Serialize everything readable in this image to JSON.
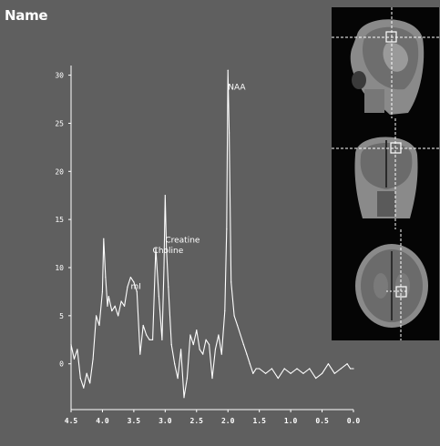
{
  "window": {
    "title": "Name"
  },
  "chart_data": {
    "type": "line",
    "x": [
      4.5,
      4.45,
      4.4,
      4.35,
      4.3,
      4.25,
      4.2,
      4.15,
      4.1,
      4.05,
      4.0,
      3.98,
      3.95,
      3.92,
      3.9,
      3.85,
      3.8,
      3.75,
      3.7,
      3.65,
      3.6,
      3.55,
      3.5,
      3.45,
      3.4,
      3.35,
      3.3,
      3.25,
      3.2,
      3.15,
      3.1,
      3.05,
      3.02,
      3.0,
      2.98,
      2.95,
      2.9,
      2.85,
      2.8,
      2.75,
      2.7,
      2.65,
      2.6,
      2.55,
      2.5,
      2.45,
      2.4,
      2.35,
      2.3,
      2.25,
      2.2,
      2.15,
      2.1,
      2.05,
      2.02,
      2.0,
      1.98,
      1.95,
      1.9,
      1.85,
      1.8,
      1.75,
      1.7,
      1.65,
      1.6,
      1.55,
      1.5,
      1.4,
      1.3,
      1.2,
      1.1,
      1.0,
      0.9,
      0.8,
      0.7,
      0.6,
      0.5,
      0.4,
      0.3,
      0.2,
      0.1,
      0.05,
      0.0
    ],
    "y": [
      2.0,
      0.5,
      1.5,
      -1.5,
      -2.5,
      -1.0,
      -2.0,
      0.5,
      5.0,
      4.0,
      7.5,
      13.0,
      9.0,
      6.0,
      7.0,
      5.5,
      6.0,
      5.0,
      6.5,
      6.0,
      8.0,
      9.0,
      8.5,
      7.5,
      1.0,
      4.0,
      3.0,
      2.5,
      2.5,
      12.0,
      7.0,
      2.5,
      10.0,
      17.5,
      12.0,
      8.0,
      2.0,
      0.0,
      -1.5,
      1.5,
      -3.5,
      -1.5,
      3.0,
      2.0,
      3.5,
      1.5,
      1.0,
      2.5,
      2.0,
      -1.5,
      1.5,
      3.0,
      1.0,
      5.5,
      14.0,
      30.5,
      24.0,
      8.5,
      5.0,
      4.0,
      3.0,
      2.0,
      1.0,
      0.0,
      -1.0,
      -0.5,
      -0.5,
      -1.0,
      -0.5,
      -1.5,
      -0.5,
      -1.0,
      -0.5,
      -1.0,
      -0.5,
      -1.5,
      -1.0,
      0.0,
      -1.0,
      -0.5,
      0.0,
      -0.5,
      -0.5
    ],
    "xlim": [
      4.5,
      0.0
    ],
    "ylim": [
      -4,
      31
    ],
    "x_ticks": [
      "4.5",
      "4.0",
      "3.5",
      "3.0",
      "2.5",
      "2.0",
      "1.5",
      "1.0",
      "0.5",
      "0.0"
    ],
    "y_ticks": [
      "0",
      "5",
      "10",
      "15",
      "20",
      "25",
      "30"
    ],
    "annotations": [
      {
        "text": "NAA",
        "x": 2.0,
        "y": 28.5
      },
      {
        "text": "Creatine",
        "x": 3.0,
        "y": 12.6
      },
      {
        "text": "Choline",
        "x": 3.2,
        "y": 11.5
      },
      {
        "text": "mI",
        "x": 3.55,
        "y": 7.8
      }
    ],
    "colors": {
      "line": "#ffffff",
      "background": "#5f5f5f",
      "text": "#ffffff"
    }
  },
  "images": [
    {
      "name": "sagittal"
    },
    {
      "name": "coronal"
    },
    {
      "name": "axial"
    }
  ]
}
